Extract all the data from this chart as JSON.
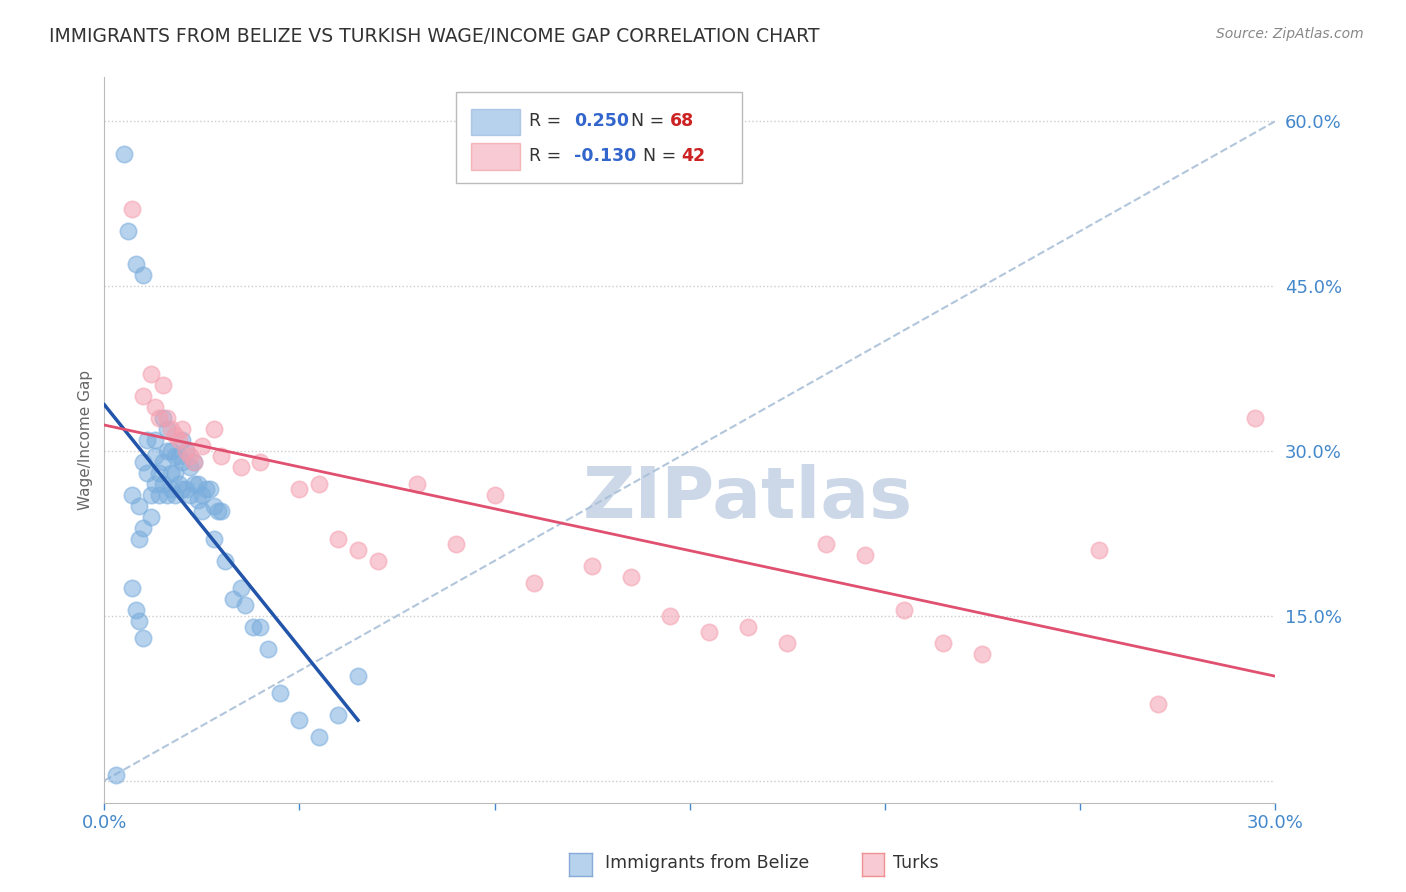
{
  "title": "IMMIGRANTS FROM BELIZE VS TURKISH WAGE/INCOME GAP CORRELATION CHART",
  "source": "Source: ZipAtlas.com",
  "ylabel": "Wage/Income Gap",
  "xlim": [
    0.0,
    0.3
  ],
  "ylim": [
    -0.02,
    0.64
  ],
  "xticks": [
    0.0,
    0.05,
    0.1,
    0.15,
    0.2,
    0.25,
    0.3
  ],
  "xtick_labels": [
    "0.0%",
    "",
    "",
    "",
    "",
    "",
    "30.0%"
  ],
  "yticks_right": [
    0.0,
    0.15,
    0.3,
    0.45,
    0.6
  ],
  "ytick_labels_right": [
    "",
    "15.0%",
    "30.0%",
    "45.0%",
    "60.0%"
  ],
  "gridline_color": "#cccccc",
  "background_color": "#ffffff",
  "title_fontsize": 14,
  "title_color": "#333333",
  "source_color": "#888888",
  "watermark": "ZIPatlas",
  "watermark_color": "#ccd8e8",
  "blue_color": "#7aaddd",
  "pink_color": "#f4a0b0",
  "blue_line_color": "#2255aa",
  "pink_line_color": "#e05070",
  "ref_line_color": "#aac0d8",
  "tick_color": "#4488cc",
  "blue_x": [
    0.003,
    0.005,
    0.006,
    0.007,
    0.008,
    0.009,
    0.009,
    0.01,
    0.01,
    0.01,
    0.011,
    0.011,
    0.012,
    0.012,
    0.013,
    0.013,
    0.013,
    0.014,
    0.014,
    0.015,
    0.015,
    0.015,
    0.016,
    0.016,
    0.016,
    0.017,
    0.017,
    0.017,
    0.018,
    0.018,
    0.018,
    0.019,
    0.019,
    0.02,
    0.02,
    0.02,
    0.021,
    0.021,
    0.022,
    0.022,
    0.023,
    0.023,
    0.024,
    0.024,
    0.025,
    0.025,
    0.026,
    0.027,
    0.028,
    0.028,
    0.029,
    0.03,
    0.031,
    0.033,
    0.035,
    0.036,
    0.038,
    0.04,
    0.042,
    0.045,
    0.05,
    0.055,
    0.06,
    0.065,
    0.007,
    0.008,
    0.009,
    0.01
  ],
  "blue_y": [
    0.005,
    0.57,
    0.5,
    0.26,
    0.47,
    0.25,
    0.22,
    0.46,
    0.29,
    0.23,
    0.31,
    0.28,
    0.26,
    0.24,
    0.31,
    0.295,
    0.27,
    0.28,
    0.26,
    0.33,
    0.29,
    0.27,
    0.32,
    0.3,
    0.26,
    0.3,
    0.28,
    0.265,
    0.295,
    0.28,
    0.26,
    0.295,
    0.27,
    0.31,
    0.29,
    0.265,
    0.3,
    0.265,
    0.285,
    0.26,
    0.29,
    0.27,
    0.27,
    0.255,
    0.26,
    0.245,
    0.265,
    0.265,
    0.25,
    0.22,
    0.245,
    0.245,
    0.2,
    0.165,
    0.175,
    0.16,
    0.14,
    0.14,
    0.12,
    0.08,
    0.055,
    0.04,
    0.06,
    0.095,
    0.175,
    0.155,
    0.145,
    0.13
  ],
  "pink_x": [
    0.007,
    0.01,
    0.012,
    0.013,
    0.014,
    0.015,
    0.016,
    0.017,
    0.018,
    0.019,
    0.02,
    0.021,
    0.022,
    0.023,
    0.025,
    0.028,
    0.03,
    0.035,
    0.04,
    0.05,
    0.055,
    0.06,
    0.065,
    0.07,
    0.08,
    0.09,
    0.1,
    0.11,
    0.125,
    0.135,
    0.145,
    0.155,
    0.165,
    0.175,
    0.185,
    0.195,
    0.205,
    0.215,
    0.225,
    0.255,
    0.27,
    0.295
  ],
  "pink_y": [
    0.52,
    0.35,
    0.37,
    0.34,
    0.33,
    0.36,
    0.33,
    0.32,
    0.315,
    0.31,
    0.32,
    0.3,
    0.295,
    0.29,
    0.305,
    0.32,
    0.295,
    0.285,
    0.29,
    0.265,
    0.27,
    0.22,
    0.21,
    0.2,
    0.27,
    0.215,
    0.26,
    0.18,
    0.195,
    0.185,
    0.15,
    0.135,
    0.14,
    0.125,
    0.215,
    0.205,
    0.155,
    0.125,
    0.115,
    0.21,
    0.07,
    0.33
  ]
}
